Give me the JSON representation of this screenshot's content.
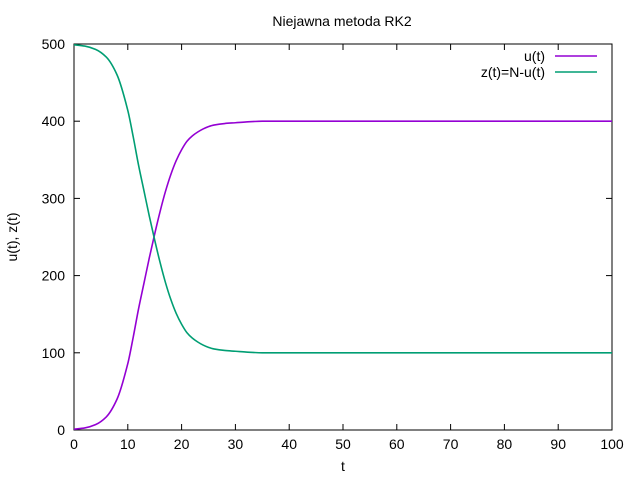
{
  "chart_data": {
    "type": "line",
    "title": "Niejawna metoda RK2",
    "xlabel": "t",
    "ylabel": "u(t), z(t)",
    "xlim": [
      0,
      100
    ],
    "ylim": [
      0,
      500
    ],
    "xticks": [
      0,
      10,
      20,
      30,
      40,
      50,
      60,
      70,
      80,
      90,
      100
    ],
    "yticks": [
      0,
      100,
      200,
      300,
      400,
      500
    ],
    "grid": false,
    "legend_position": "top-right",
    "x": [
      0,
      2,
      4,
      6,
      8,
      10,
      11,
      12,
      13,
      14,
      15,
      16,
      17,
      18,
      19,
      20,
      21,
      22,
      23,
      24,
      25,
      26,
      28,
      30,
      32,
      35,
      40,
      50,
      60,
      70,
      80,
      90,
      100
    ],
    "series": [
      {
        "name": "u(t)",
        "color": "#9400d3",
        "values": [
          1,
          2.7,
          7,
          17,
          40,
          86,
          120,
          157,
          190,
          223,
          254,
          283,
          309,
          331,
          349,
          363,
          374,
          381,
          386,
          390,
          393,
          395,
          397,
          398,
          399,
          400,
          400,
          400,
          400,
          400,
          400,
          400,
          400
        ]
      },
      {
        "name": "z(t)=N-u(t)",
        "color": "#009e73",
        "values": [
          499,
          497.3,
          493,
          483,
          460,
          414,
          380,
          343,
          310,
          277,
          246,
          217,
          191,
          169,
          151,
          137,
          126,
          119,
          114,
          110,
          107,
          105,
          103,
          102,
          101,
          100,
          100,
          100,
          100,
          100,
          100,
          100,
          100
        ]
      }
    ]
  }
}
